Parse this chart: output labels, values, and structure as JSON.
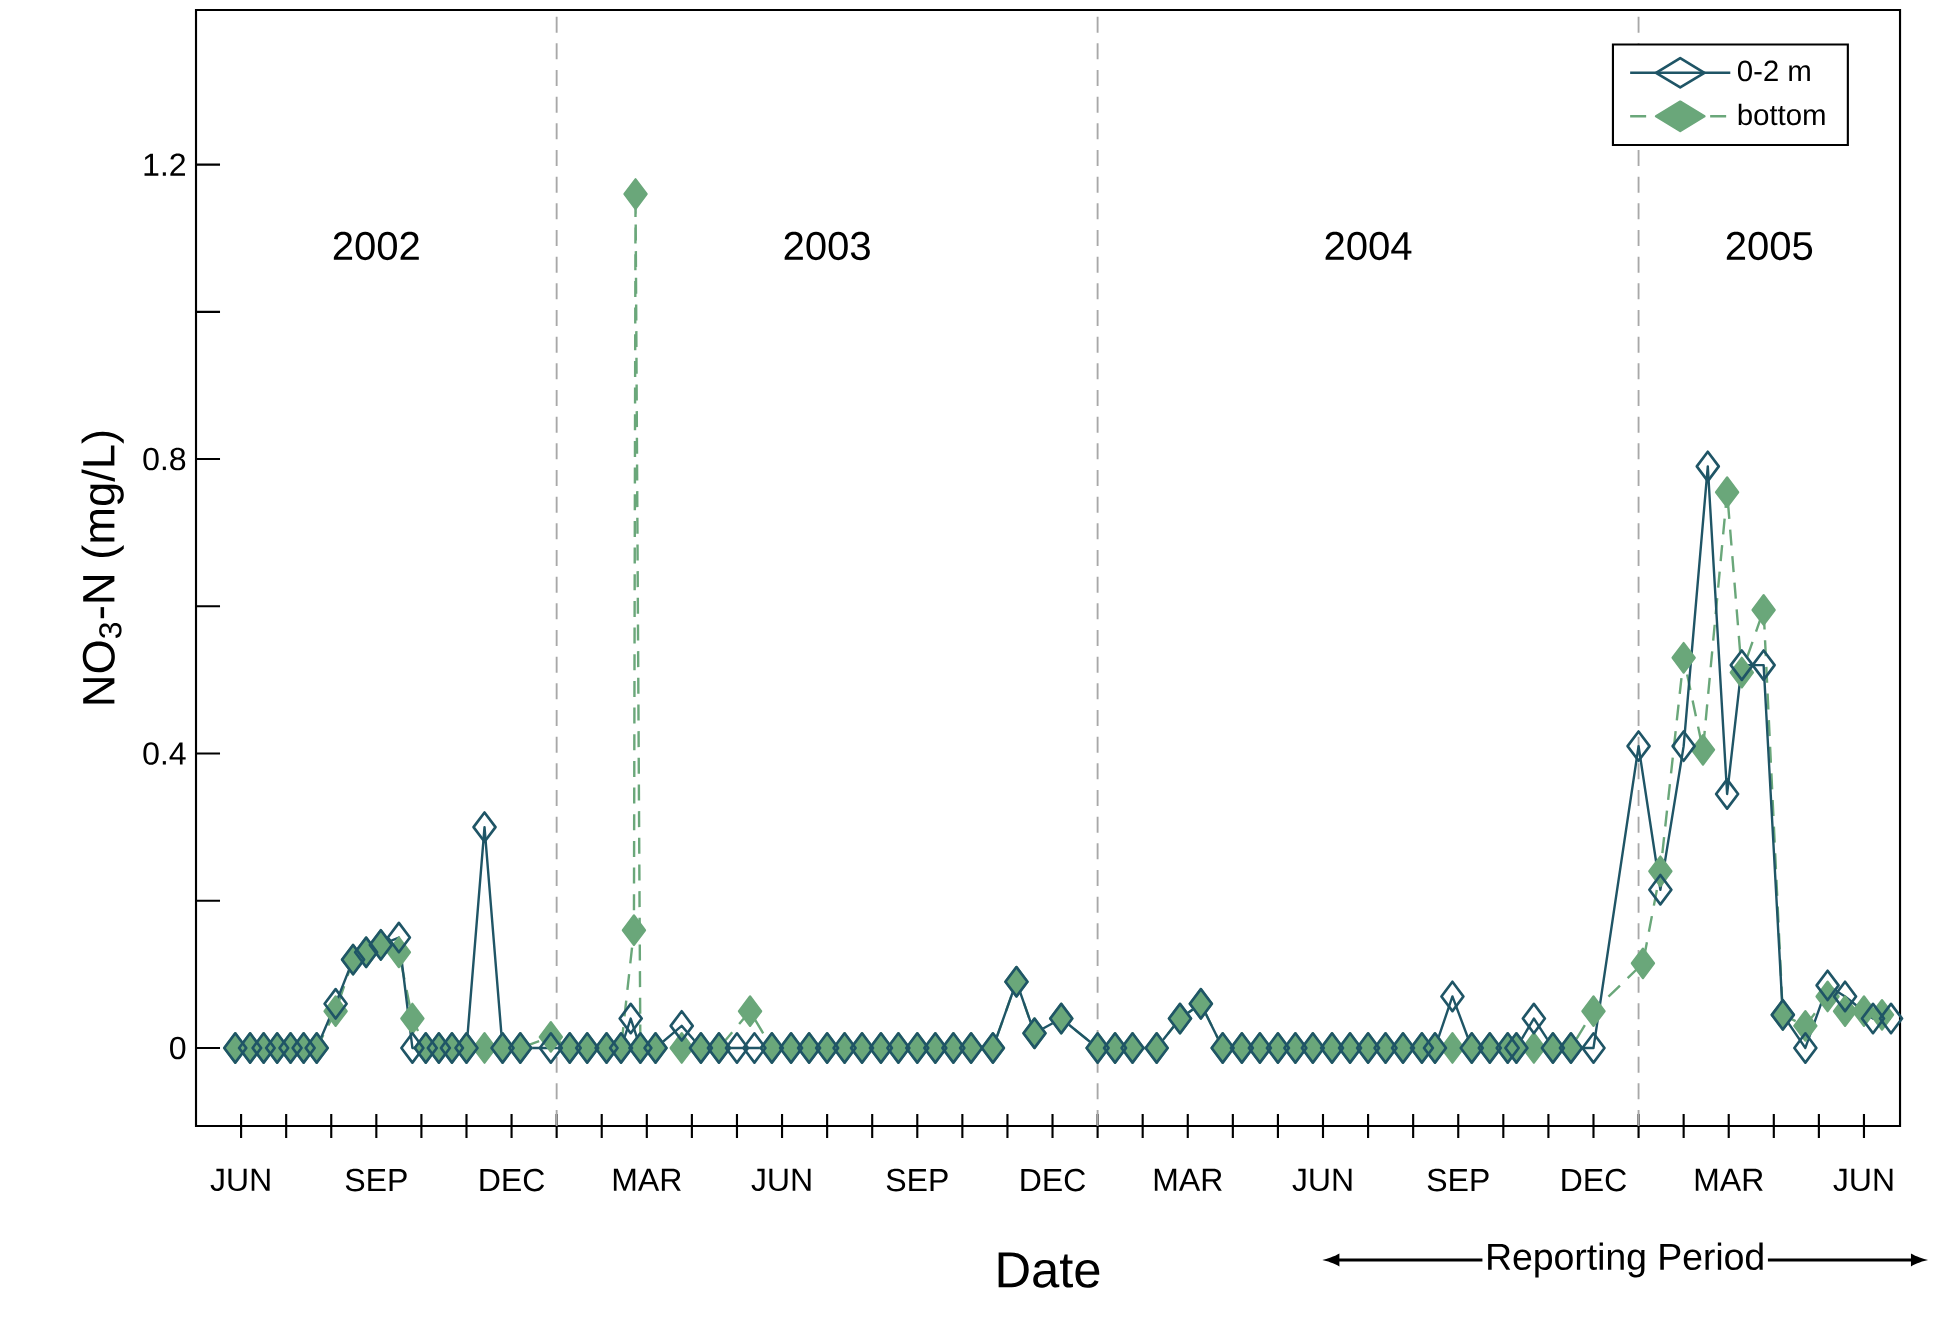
{
  "chart_data": {
    "type": "line",
    "xlabel": "Date",
    "ylabel": "NO$_{3}$-N (mg/L)",
    "xlim": [
      "2002-05-01",
      "2005-06-25"
    ],
    "ylim": [
      -0.106,
      1.41
    ],
    "xticks": [
      {
        "value": "2002-06-01",
        "label": "JUN"
      },
      {
        "value": "2002-07-01",
        "label": null
      },
      {
        "value": "2002-08-01",
        "label": null
      },
      {
        "value": "2002-09-01",
        "label": "SEP"
      },
      {
        "value": "2002-10-01",
        "label": null
      },
      {
        "value": "2002-11-01",
        "label": null
      },
      {
        "value": "2002-12-01",
        "label": "DEC"
      },
      {
        "value": "2003-01-01",
        "label": null
      },
      {
        "value": "2003-02-01",
        "label": null
      },
      {
        "value": "2003-03-01",
        "label": "MAR"
      },
      {
        "value": "2003-04-01",
        "label": null
      },
      {
        "value": "2003-05-01",
        "label": null
      },
      {
        "value": "2003-06-01",
        "label": "JUN"
      },
      {
        "value": "2003-07-01",
        "label": null
      },
      {
        "value": "2003-08-01",
        "label": null
      },
      {
        "value": "2003-09-01",
        "label": "SEP"
      },
      {
        "value": "2003-10-01",
        "label": null
      },
      {
        "value": "2003-11-01",
        "label": null
      },
      {
        "value": "2003-12-01",
        "label": "DEC"
      },
      {
        "value": "2004-01-01",
        "label": null
      },
      {
        "value": "2004-02-01",
        "label": null
      },
      {
        "value": "2004-03-01",
        "label": "MAR"
      },
      {
        "value": "2004-04-01",
        "label": null
      },
      {
        "value": "2004-05-01",
        "label": null
      },
      {
        "value": "2004-06-01",
        "label": "JUN"
      },
      {
        "value": "2004-07-01",
        "label": null
      },
      {
        "value": "2004-08-01",
        "label": null
      },
      {
        "value": "2004-09-01",
        "label": "SEP"
      },
      {
        "value": "2004-10-01",
        "label": null
      },
      {
        "value": "2004-11-01",
        "label": null
      },
      {
        "value": "2004-12-01",
        "label": "DEC"
      },
      {
        "value": "2005-01-01",
        "label": null
      },
      {
        "value": "2005-02-01",
        "label": null
      },
      {
        "value": "2005-03-01",
        "label": "MAR"
      },
      {
        "value": "2005-04-01",
        "label": null
      },
      {
        "value": "2005-05-01",
        "label": null
      },
      {
        "value": "2005-06-01",
        "label": "JUN"
      }
    ],
    "yticks": [
      0,
      {
        "value": 0.2,
        "label": null
      },
      0.4,
      {
        "value": 0.6,
        "label": null
      },
      0.8,
      {
        "value": 1.0,
        "label": null
      },
      1.2
    ],
    "ref_lines": [
      {
        "axis": "x",
        "value": "2003-01-01",
        "color": "#a8a8a8",
        "line_style": "dashed"
      },
      {
        "axis": "x",
        "value": "2004-01-01",
        "color": "#a8a8a8",
        "line_style": "dashed"
      },
      {
        "axis": "x",
        "value": "2005-01-01",
        "color": "#a8a8a8",
        "line_style": "dashed"
      }
    ],
    "annotations": [
      "2002",
      "2003",
      "2004",
      "2005",
      "Reporting Period"
    ],
    "legend": "top right",
    "grid": false,
    "marker": "diamond",
    "series": [
      {
        "name": "0-2 m",
        "color": "#1f5566",
        "line_style": "solid",
        "x": [
          "2002-05-28",
          "2002-06-07",
          "2002-06-16",
          "2002-06-25",
          "2002-07-04",
          "2002-07-13",
          "2002-07-22",
          "2002-08-04",
          "2002-08-16",
          "2002-08-25",
          "2002-09-04",
          "2002-09-16",
          "2002-09-25",
          "2002-10-04",
          "2002-10-13",
          "2002-10-22",
          "2002-11-01",
          "2002-11-13",
          "2002-11-25",
          "2002-12-07",
          "2002-12-28",
          "2003-01-10",
          "2003-01-22",
          "2003-02-04",
          "2003-02-13",
          "2003-02-19",
          "2003-02-25",
          "2003-03-07",
          "2003-03-25",
          "2003-04-07",
          "2003-04-19",
          "2003-05-01",
          "2003-05-13",
          "2003-05-25",
          "2003-06-07",
          "2003-06-19",
          "2003-07-01",
          "2003-07-13",
          "2003-07-25",
          "2003-08-07",
          "2003-08-19",
          "2003-09-01",
          "2003-09-13",
          "2003-09-25",
          "2003-10-07",
          "2003-10-22",
          "2003-11-07",
          "2003-11-19",
          "2003-12-07",
          "2004-01-01",
          "2004-01-13",
          "2004-01-25",
          "2004-02-10",
          "2004-02-25",
          "2004-03-10",
          "2004-03-25",
          "2004-04-07",
          "2004-04-19",
          "2004-05-01",
          "2004-05-13",
          "2004-05-25",
          "2004-06-07",
          "2004-06-19",
          "2004-07-01",
          "2004-07-13",
          "2004-07-25",
          "2004-08-07",
          "2004-08-16",
          "2004-08-28",
          "2004-09-10",
          "2004-09-22",
          "2004-10-04",
          "2004-10-10",
          "2004-10-22",
          "2004-11-04",
          "2004-11-16",
          "2004-12-01",
          "2005-01-01",
          "2005-01-16",
          "2005-02-01",
          "2005-02-16",
          "2005-02-28",
          "2005-03-10",
          "2005-03-25",
          "2005-04-07",
          "2005-04-22",
          "2005-05-07",
          "2005-05-19",
          "2005-06-07",
          "2005-06-19"
        ],
        "values": [
          0,
          0,
          0,
          0,
          0,
          0,
          0,
          0.06,
          0.12,
          0.13,
          0.14,
          0.15,
          0,
          0,
          0,
          0,
          0,
          0.3,
          0,
          0,
          0,
          0,
          0,
          0,
          0,
          0.04,
          0,
          0,
          0.03,
          0,
          0,
          0,
          0,
          0,
          0,
          0,
          0,
          0,
          0,
          0,
          0,
          0,
          0,
          0,
          0,
          0,
          0.09,
          0.02,
          0.04,
          0,
          0,
          0,
          0,
          0.04,
          0.06,
          0,
          0,
          0,
          0,
          0,
          0,
          0,
          0,
          0,
          0,
          0,
          0,
          0,
          0.07,
          0,
          0,
          0,
          0,
          0.04,
          0,
          0,
          0,
          0.41,
          0.215,
          0.41,
          0.79,
          0.345,
          0.52,
          0.52,
          0.045,
          0,
          0.085,
          0.07,
          0.04,
          0.04
        ]
      },
      {
        "name": "bottom",
        "color": "#6aa77a",
        "line_style": "dashed",
        "x": [
          "2002-05-28",
          "2002-06-07",
          "2002-06-16",
          "2002-06-25",
          "2002-07-04",
          "2002-07-13",
          "2002-07-22",
          "2002-08-04",
          "2002-08-16",
          "2002-08-25",
          "2002-09-04",
          "2002-09-16",
          "2002-09-25",
          "2002-10-04",
          "2002-10-13",
          "2002-10-22",
          "2002-11-01",
          "2002-11-13",
          "2002-11-25",
          "2002-12-07",
          "2002-12-28",
          "2003-01-10",
          "2003-01-22",
          "2003-02-04",
          "2003-02-13",
          "2003-02-21",
          "2003-02-22",
          "2003-02-25",
          "2003-03-07",
          "2003-03-25",
          "2003-04-07",
          "2003-04-19",
          "2003-05-10",
          "2003-05-25",
          "2003-06-07",
          "2003-06-19",
          "2003-07-01",
          "2003-07-13",
          "2003-07-25",
          "2003-08-07",
          "2003-08-19",
          "2003-09-01",
          "2003-09-13",
          "2003-09-25",
          "2003-10-07",
          "2003-10-22",
          "2003-11-07",
          "2003-11-19",
          "2003-12-07",
          "2004-01-01",
          "2004-01-13",
          "2004-01-25",
          "2004-02-10",
          "2004-02-25",
          "2004-03-10",
          "2004-03-25",
          "2004-04-07",
          "2004-04-19",
          "2004-05-01",
          "2004-05-13",
          "2004-05-25",
          "2004-06-07",
          "2004-06-19",
          "2004-07-01",
          "2004-07-13",
          "2004-07-25",
          "2004-08-07",
          "2004-08-16",
          "2004-08-28",
          "2004-09-10",
          "2004-09-22",
          "2004-10-04",
          "2004-10-10",
          "2004-10-22",
          "2004-11-04",
          "2004-11-16",
          "2004-12-01",
          "2005-01-04",
          "2005-01-16",
          "2005-02-01",
          "2005-02-13",
          "2005-02-28",
          "2005-03-10",
          "2005-03-25",
          "2005-04-07",
          "2005-04-22",
          "2005-05-07",
          "2005-05-19",
          "2005-06-01",
          "2005-06-13"
        ],
        "values": [
          0,
          0,
          0,
          0,
          0,
          0,
          0,
          0.05,
          0.12,
          0.13,
          0.14,
          0.13,
          0.04,
          0,
          0,
          0,
          0,
          0,
          0,
          0,
          0.015,
          0,
          0,
          0,
          0,
          0.16,
          1.16,
          0,
          0,
          0,
          0,
          0,
          0.05,
          0,
          0,
          0,
          0,
          0,
          0,
          0,
          0,
          0,
          0,
          0,
          0,
          0,
          0.09,
          0.02,
          0.04,
          0,
          0,
          0,
          0,
          0.04,
          0.06,
          0,
          0,
          0,
          0,
          0,
          0,
          0,
          0,
          0,
          0,
          0,
          0,
          0,
          0,
          0,
          0,
          0,
          0,
          0,
          0,
          0,
          0.05,
          0.115,
          0.24,
          0.53,
          0.405,
          0.755,
          0.51,
          0.595,
          0.045,
          0.03,
          0.07,
          0.05,
          0.05,
          0.045
        ]
      }
    ]
  }
}
